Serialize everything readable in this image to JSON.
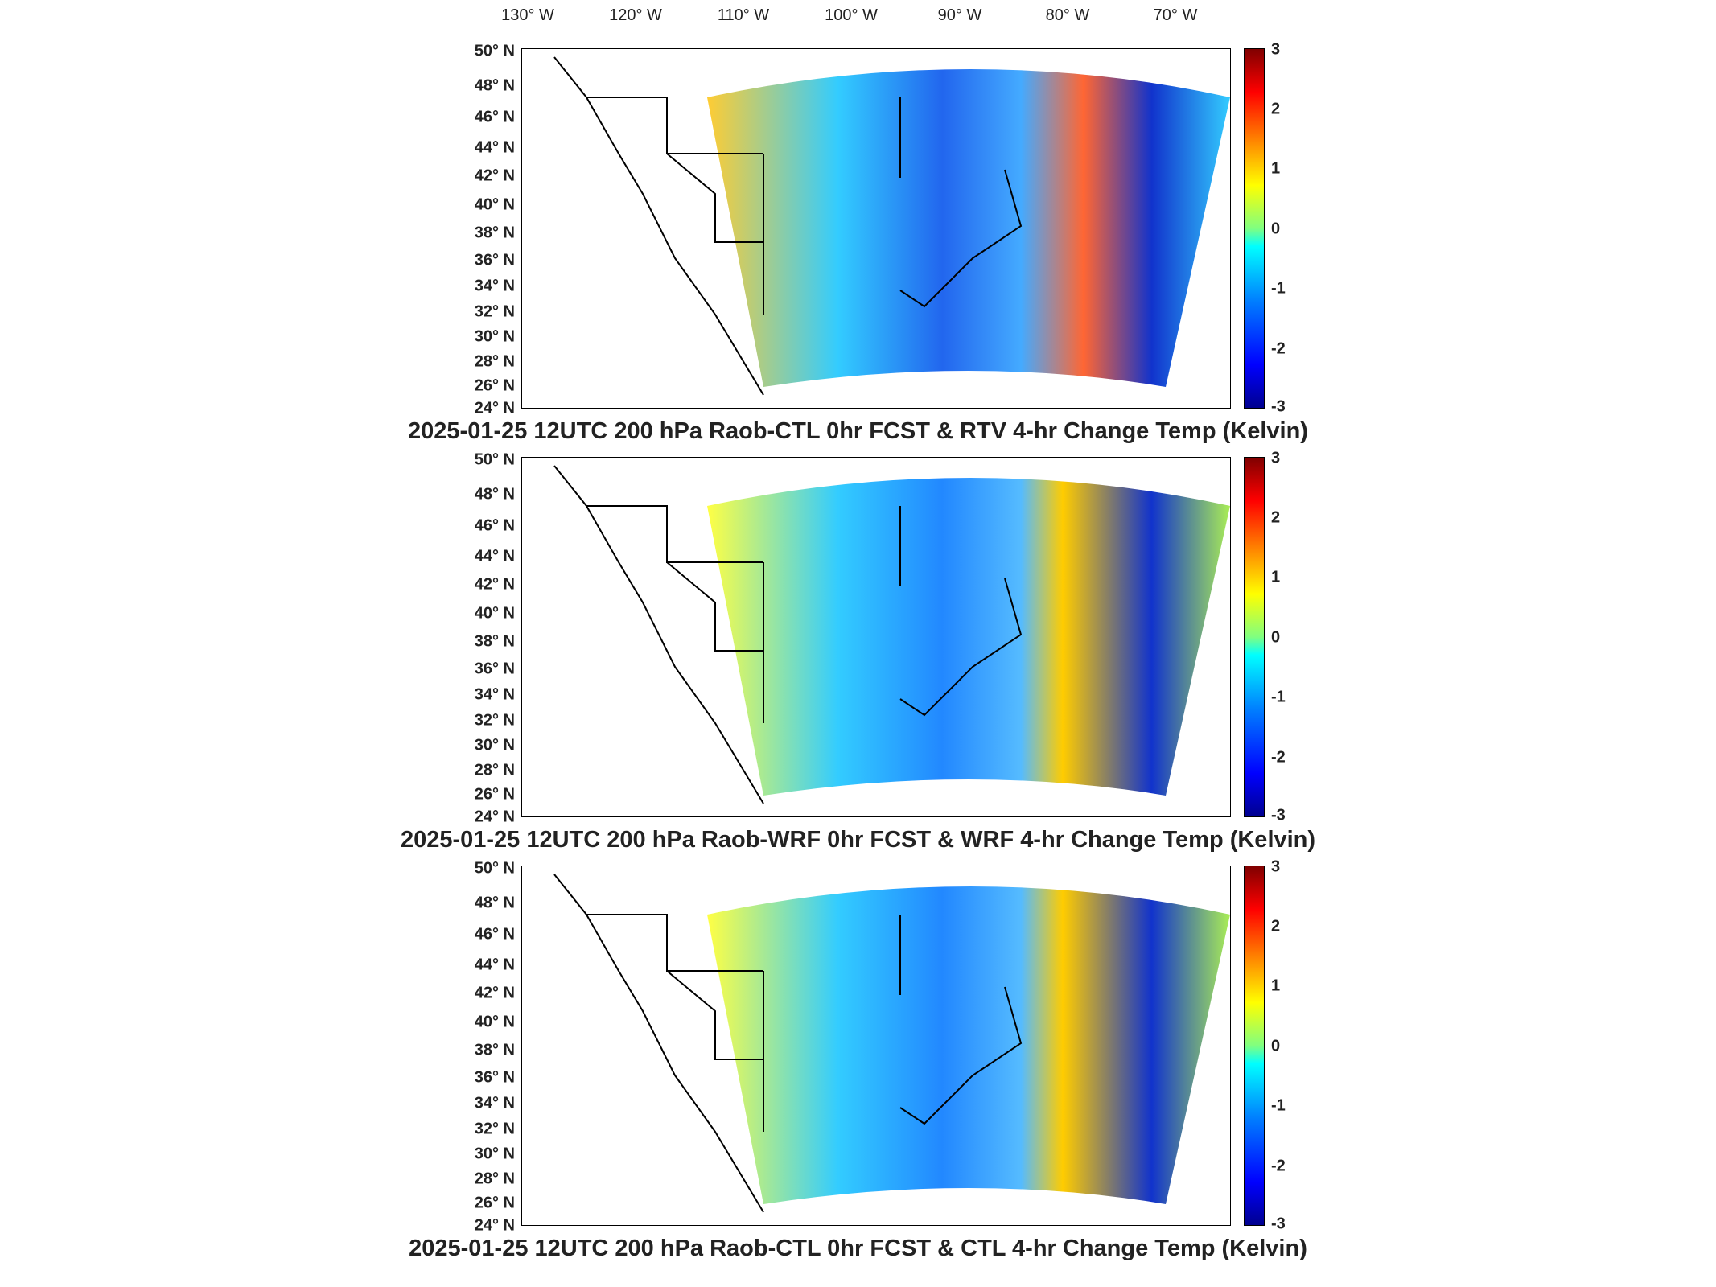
{
  "longitude_labels": [
    "130° W",
    "120° W",
    "110° W",
    "100° W",
    "90° W",
    "80° W",
    "70° W"
  ],
  "latitude_labels": [
    "50° N",
    "48° N",
    "46° N",
    "44° N",
    "42° N",
    "40° N",
    "38° N",
    "36° N",
    "34° N",
    "32° N",
    "30° N",
    "28° N",
    "26° N",
    "24° N"
  ],
  "colorbar_ticks": [
    "3",
    "2",
    "1",
    "0",
    "-1",
    "-2",
    "-3"
  ],
  "colorbar_range": [
    -3,
    3
  ],
  "colors": {
    "low": "#00008f",
    "mid": "#00ffff",
    "zero": "#80ff80",
    "high": "#800000"
  },
  "panels": [
    {
      "title": "2025-01-25 12UTC 200 hPa Raob-CTL 0hr FCST & RTV 4-hr Change Temp (Kelvin)"
    },
    {
      "title": "2025-01-25 12UTC 200 hPa Raob-WRF 0hr FCST & WRF 4-hr Change Temp (Kelvin)"
    },
    {
      "title": "2025-01-25 12UTC 200 hPa Raob-CTL 0hr FCST & CTL 4-hr Change Temp (Kelvin)"
    }
  ]
}
